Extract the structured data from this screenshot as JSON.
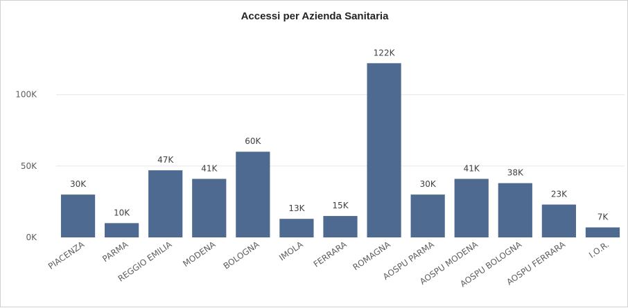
{
  "chart_data": {
    "type": "bar",
    "title": "Accessi per Azienda Sanitaria",
    "categories": [
      "PIACENZA",
      "PARMA",
      "REGGIO EMILIA",
      "MODENA",
      "BOLOGNA",
      "IMOLA",
      "FERRARA",
      "ROMAGNA",
      "AOSPU PARMA",
      "AOSPU MODENA",
      "AOSPU BOLOGNA",
      "AOSPU FERRARA",
      "I.O.R."
    ],
    "values": [
      30000,
      10000,
      47000,
      41000,
      60000,
      13000,
      15000,
      122000,
      30000,
      41000,
      38000,
      23000,
      7000
    ],
    "data_labels": [
      "30K",
      "10K",
      "47K",
      "41K",
      "60K",
      "13K",
      "15K",
      "122K",
      "30K",
      "41K",
      "38K",
      "23K",
      "7K"
    ],
    "yticks": [
      0,
      50000,
      100000
    ],
    "ytick_labels": [
      "0K",
      "50K",
      "100K"
    ],
    "ylim": [
      0,
      127000
    ],
    "xlabel": "",
    "ylabel": "",
    "grid": true,
    "bar_color": "#4e6a91"
  }
}
